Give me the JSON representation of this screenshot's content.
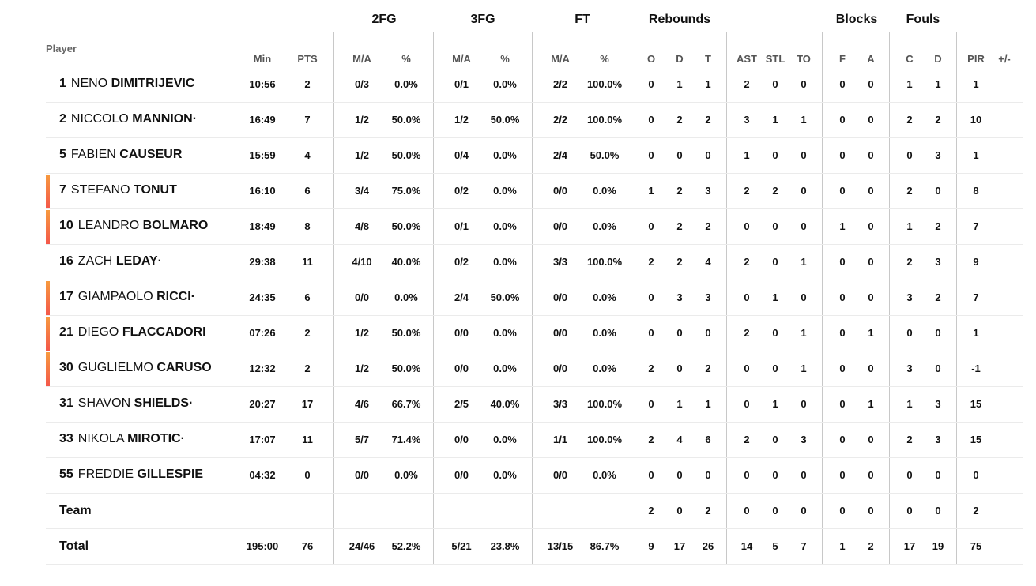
{
  "groups": {
    "fg2": "2FG",
    "fg3": "3FG",
    "ft": "FT",
    "rebounds": "Rebounds",
    "blocks": "Blocks",
    "fouls": "Fouls"
  },
  "player_header": "Player",
  "columns": [
    "Min",
    "PTS",
    "M/A",
    "%",
    "M/A",
    "%",
    "M/A",
    "%",
    "O",
    "D",
    "T",
    "AST",
    "STL",
    "TO",
    "F",
    "A",
    "C",
    "D",
    "PIR",
    "+/-"
  ],
  "accent_colors": {
    "bar_top": "#f79a3e",
    "bar_bottom": "#f4574a"
  },
  "players": [
    {
      "num": "1",
      "first": "NENO",
      "last": "DIMITRIJEVIC",
      "highlight": false,
      "stats": [
        "10:56",
        "2",
        "0/3",
        "0.0%",
        "0/1",
        "0.0%",
        "2/2",
        "100.0%",
        "0",
        "1",
        "1",
        "2",
        "0",
        "0",
        "0",
        "0",
        "1",
        "1",
        "1",
        ""
      ]
    },
    {
      "num": "2",
      "first": "NICCOLO",
      "last": "MANNION·",
      "highlight": false,
      "stats": [
        "16:49",
        "7",
        "1/2",
        "50.0%",
        "1/2",
        "50.0%",
        "2/2",
        "100.0%",
        "0",
        "2",
        "2",
        "3",
        "1",
        "1",
        "0",
        "0",
        "2",
        "2",
        "10",
        ""
      ]
    },
    {
      "num": "5",
      "first": "FABIEN",
      "last": "CAUSEUR",
      "highlight": false,
      "stats": [
        "15:59",
        "4",
        "1/2",
        "50.0%",
        "0/4",
        "0.0%",
        "2/4",
        "50.0%",
        "0",
        "0",
        "0",
        "1",
        "0",
        "0",
        "0",
        "0",
        "0",
        "3",
        "1",
        ""
      ]
    },
    {
      "num": "7",
      "first": "STEFANO",
      "last": "TONUT",
      "highlight": true,
      "stats": [
        "16:10",
        "6",
        "3/4",
        "75.0%",
        "0/2",
        "0.0%",
        "0/0",
        "0.0%",
        "1",
        "2",
        "3",
        "2",
        "2",
        "0",
        "0",
        "0",
        "2",
        "0",
        "8",
        ""
      ]
    },
    {
      "num": "10",
      "first": "LEANDRO",
      "last": "BOLMARO",
      "highlight": true,
      "stats": [
        "18:49",
        "8",
        "4/8",
        "50.0%",
        "0/1",
        "0.0%",
        "0/0",
        "0.0%",
        "0",
        "2",
        "2",
        "0",
        "0",
        "0",
        "1",
        "0",
        "1",
        "2",
        "7",
        ""
      ]
    },
    {
      "num": "16",
      "first": "ZACH",
      "last": "LEDAY·",
      "highlight": false,
      "stats": [
        "29:38",
        "11",
        "4/10",
        "40.0%",
        "0/2",
        "0.0%",
        "3/3",
        "100.0%",
        "2",
        "2",
        "4",
        "2",
        "0",
        "1",
        "0",
        "0",
        "2",
        "3",
        "9",
        ""
      ]
    },
    {
      "num": "17",
      "first": "GIAMPAOLO",
      "last": "RICCI·",
      "highlight": true,
      "stats": [
        "24:35",
        "6",
        "0/0",
        "0.0%",
        "2/4",
        "50.0%",
        "0/0",
        "0.0%",
        "0",
        "3",
        "3",
        "0",
        "1",
        "0",
        "0",
        "0",
        "3",
        "2",
        "7",
        ""
      ]
    },
    {
      "num": "21",
      "first": "DIEGO",
      "last": "FLACCADORI",
      "highlight": true,
      "stats": [
        "07:26",
        "2",
        "1/2",
        "50.0%",
        "0/0",
        "0.0%",
        "0/0",
        "0.0%",
        "0",
        "0",
        "0",
        "2",
        "0",
        "1",
        "0",
        "1",
        "0",
        "0",
        "1",
        ""
      ]
    },
    {
      "num": "30",
      "first": "GUGLIELMO",
      "last": "CARUSO",
      "highlight": true,
      "stats": [
        "12:32",
        "2",
        "1/2",
        "50.0%",
        "0/0",
        "0.0%",
        "0/0",
        "0.0%",
        "2",
        "0",
        "2",
        "0",
        "0",
        "1",
        "0",
        "0",
        "3",
        "0",
        "-1",
        ""
      ]
    },
    {
      "num": "31",
      "first": "SHAVON",
      "last": "SHIELDS·",
      "highlight": false,
      "stats": [
        "20:27",
        "17",
        "4/6",
        "66.7%",
        "2/5",
        "40.0%",
        "3/3",
        "100.0%",
        "0",
        "1",
        "1",
        "0",
        "1",
        "0",
        "0",
        "1",
        "1",
        "3",
        "15",
        ""
      ]
    },
    {
      "num": "33",
      "first": "NIKOLA",
      "last": "MIROTIC·",
      "highlight": false,
      "stats": [
        "17:07",
        "11",
        "5/7",
        "71.4%",
        "0/0",
        "0.0%",
        "1/1",
        "100.0%",
        "2",
        "4",
        "6",
        "2",
        "0",
        "3",
        "0",
        "0",
        "2",
        "3",
        "15",
        ""
      ]
    },
    {
      "num": "55",
      "first": "FREDDIE",
      "last": "GILLESPIE",
      "highlight": false,
      "stats": [
        "04:32",
        "0",
        "0/0",
        "0.0%",
        "0/0",
        "0.0%",
        "0/0",
        "0.0%",
        "0",
        "0",
        "0",
        "0",
        "0",
        "0",
        "0",
        "0",
        "0",
        "0",
        "0",
        ""
      ]
    }
  ],
  "team": {
    "label": "Team",
    "stats": [
      "",
      "",
      "",
      "",
      "",
      "",
      "",
      "",
      "2",
      "0",
      "2",
      "0",
      "0",
      "0",
      "0",
      "0",
      "0",
      "0",
      "2",
      ""
    ]
  },
  "total": {
    "label": "Total",
    "stats": [
      "195:00",
      "76",
      "24/46",
      "52.2%",
      "5/21",
      "23.8%",
      "13/15",
      "86.7%",
      "9",
      "17",
      "26",
      "14",
      "5",
      "7",
      "1",
      "2",
      "17",
      "19",
      "75",
      ""
    ]
  }
}
